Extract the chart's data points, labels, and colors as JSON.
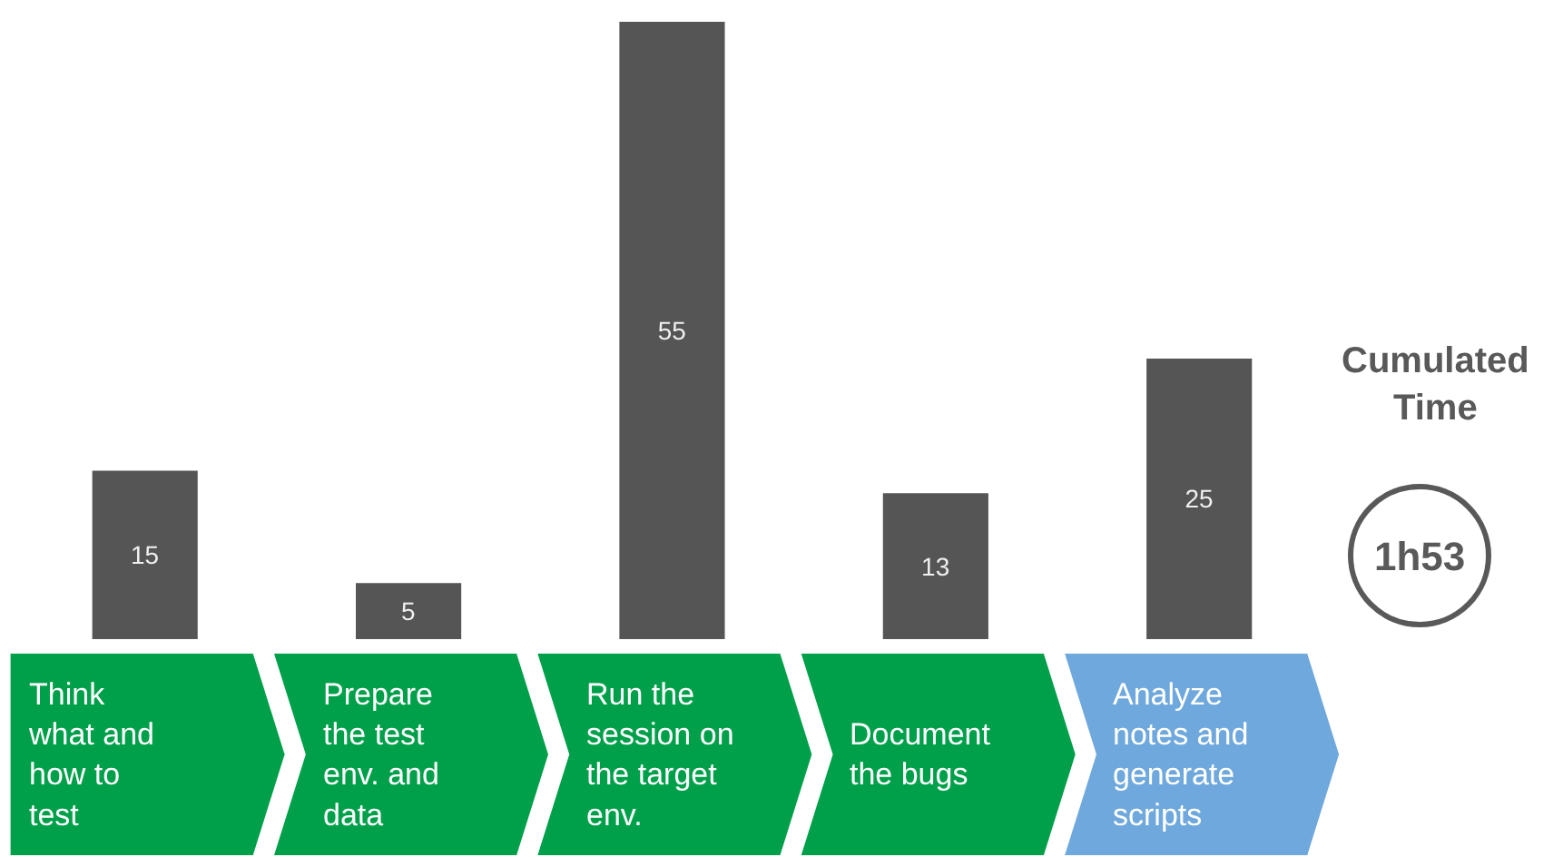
{
  "chart_data": {
    "type": "bar",
    "categories": [
      "Think\nwhat and\nhow to\ntest",
      "Prepare\nthe test\nenv. and\ndata",
      "Run the\nsession on\nthe target\nenv.",
      "Document\nthe bugs",
      "Analyze\nnotes and\ngenerate\nscripts"
    ],
    "values": [
      15,
      5,
      55,
      13,
      25
    ],
    "color": "#555555",
    "data_labels": true,
    "annotations": [
      "Cumulated\nTime",
      "1h53"
    ]
  }
}
